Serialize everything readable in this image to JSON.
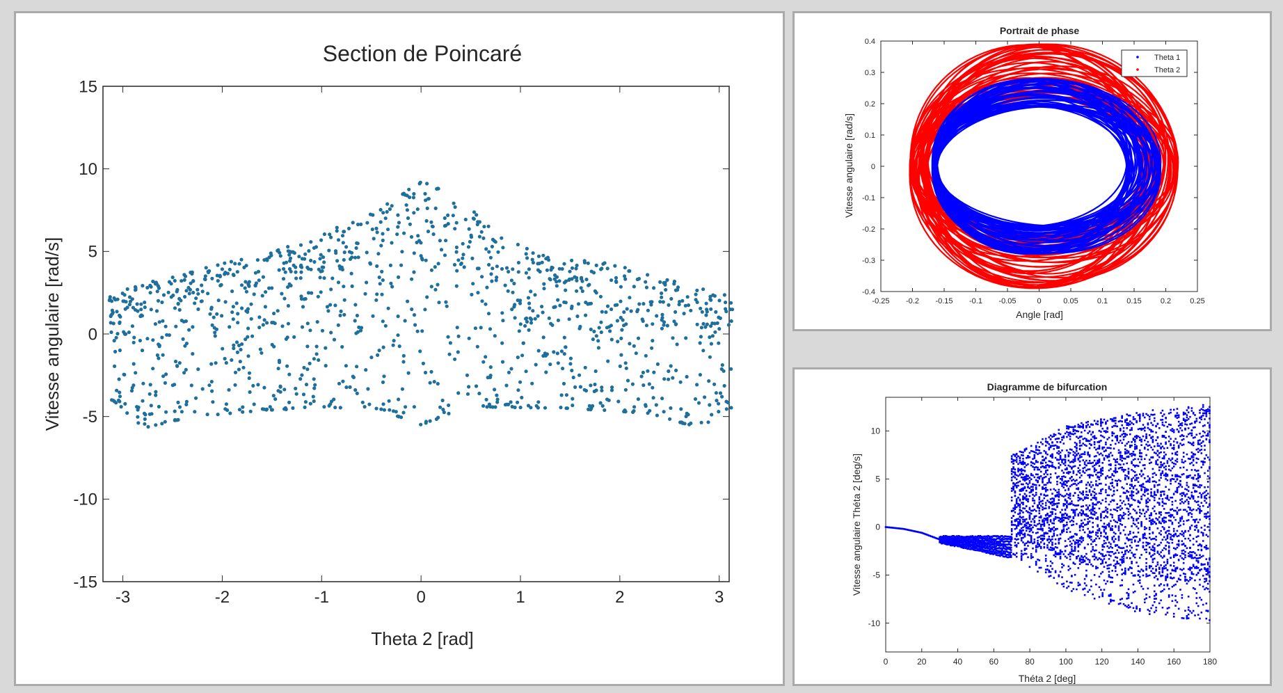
{
  "chart_data": [
    {
      "id": "poincare",
      "type": "scatter",
      "title": "Section de Poincaré",
      "xlabel": "Theta 2 [rad]",
      "ylabel": "Vitesse angulaire [rad/s]",
      "xlim": [
        -3.2,
        3.1
      ],
      "ylim": [
        -15,
        15
      ],
      "xticks": [
        -3,
        -2,
        -1,
        0,
        1,
        2,
        3
      ],
      "yticks": [
        15,
        10,
        5,
        0,
        -5,
        -10,
        -15
      ],
      "grid": false,
      "legend": null,
      "colors": {
        "points": "#1f6f9c"
      },
      "points_shape": {
        "x_range": [
          -3.14,
          3.14
        ],
        "upper_envelope": [
          [
            -3.1,
            2.5
          ],
          [
            -2.5,
            3.6
          ],
          [
            -1.5,
            5.0
          ],
          [
            -1.0,
            6.0
          ],
          [
            -0.5,
            7.5
          ],
          [
            0.0,
            9.3
          ],
          [
            0.3,
            8.5
          ],
          [
            0.7,
            6.6
          ],
          [
            1.0,
            5.4
          ],
          [
            1.5,
            4.6
          ],
          [
            2.0,
            4.2
          ],
          [
            2.5,
            3.3
          ],
          [
            3.1,
            2.4
          ]
        ],
        "lower_envelope": [
          [
            -3.1,
            -4.0
          ],
          [
            -2.8,
            -5.7
          ],
          [
            -2.3,
            -5.0
          ],
          [
            -1.5,
            -4.6
          ],
          [
            -0.5,
            -4.4
          ],
          [
            0.0,
            -5.5
          ],
          [
            0.5,
            -4.4
          ],
          [
            1.5,
            -4.5
          ],
          [
            2.3,
            -4.8
          ],
          [
            2.8,
            -5.7
          ],
          [
            3.1,
            -4.5
          ]
        ],
        "approx_count": 1300
      }
    },
    {
      "id": "phase",
      "type": "line",
      "title": "Portrait de phase",
      "xlabel": "Angle [rad]",
      "ylabel": "Vitesse angulaire [rad/s]",
      "xlim": [
        -0.25,
        0.25
      ],
      "ylim": [
        -0.4,
        0.4
      ],
      "xticks": [
        -0.25,
        -0.2,
        -0.15,
        -0.1,
        -0.05,
        0,
        0.05,
        0.1,
        0.15,
        0.2,
        0.25
      ],
      "yticks": [
        0.4,
        0.3,
        0.2,
        0.1,
        0,
        -0.1,
        -0.2,
        -0.3,
        -0.4
      ],
      "grid": false,
      "legend": "top-right",
      "series": [
        {
          "name": "Theta 1",
          "color": "#0000ff",
          "amplitude_range": [
            0.15,
            0.18
          ],
          "velocity_range": [
            0.19,
            0.28
          ]
        },
        {
          "name": "Theta 2",
          "color": "#ff0000",
          "amplitude_range": [
            0.17,
            0.21
          ],
          "velocity_range": [
            0.22,
            0.39
          ]
        }
      ]
    },
    {
      "id": "bifurcation",
      "type": "scatter",
      "title": "Diagramme de bifurcation",
      "xlabel": "Théta 2 [deg]",
      "ylabel": "Vitesse angulaire Théta 2 [deg/s]",
      "xlim": [
        0,
        180
      ],
      "ylim": [
        -13,
        13.5
      ],
      "xticks": [
        0,
        20,
        40,
        60,
        80,
        100,
        120,
        140,
        160,
        180
      ],
      "yticks": [
        10,
        5,
        0,
        -5,
        -10
      ],
      "grid": false,
      "legend": null,
      "colors": {
        "points": "#0000ff"
      },
      "branches": {
        "stable": [
          [
            0,
            0
          ],
          [
            10,
            -0.2
          ],
          [
            20,
            -0.6
          ],
          [
            30,
            -1.3
          ]
        ],
        "band_30_70": {
          "x": [
            30,
            70
          ],
          "upper": -1.0,
          "lower_start": -1.6,
          "lower_end": -3.2
        },
        "chaotic_from_deg": 70,
        "chaotic_upper": [
          [
            70,
            7.5
          ],
          [
            100,
            10.5
          ],
          [
            140,
            12.0
          ],
          [
            180,
            12.8
          ]
        ],
        "chaotic_lower": [
          [
            70,
            -3.0
          ],
          [
            100,
            -6.5
          ],
          [
            140,
            -9.0
          ],
          [
            180,
            -9.8
          ]
        ]
      }
    }
  ]
}
